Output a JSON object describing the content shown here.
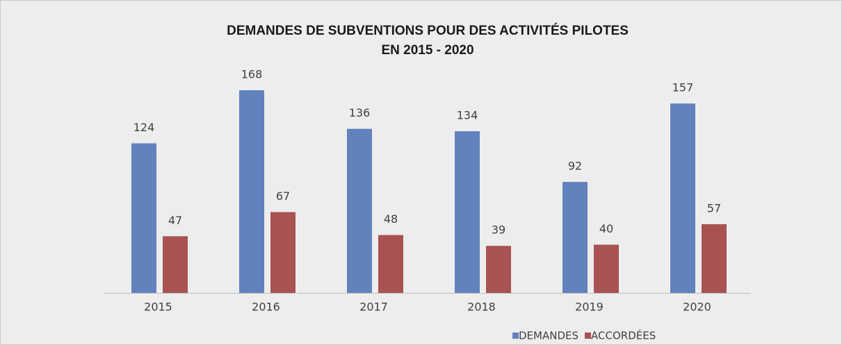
{
  "chart_data": {
    "type": "bar",
    "title": "DEMANDES DE SUBVENTIONS POUR DES ACTIVITÉS PILOTES",
    "subtitle": "EN 2015 - 2020",
    "categories": [
      "2015",
      "2016",
      "2017",
      "2018",
      "2019",
      "2020"
    ],
    "series": [
      {
        "name": "DEMANDES",
        "color": "#6282bd",
        "values": [
          124,
          168,
          136,
          134,
          92,
          157
        ]
      },
      {
        "name": "ACCORDÉES",
        "color": "#a85252",
        "values": [
          47,
          67,
          48,
          39,
          40,
          57
        ]
      }
    ],
    "legend": "bottom"
  }
}
